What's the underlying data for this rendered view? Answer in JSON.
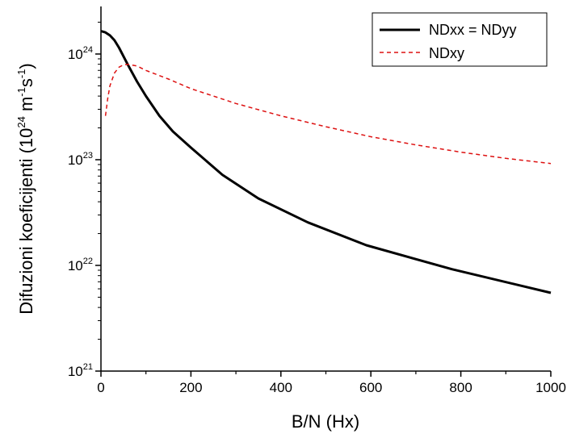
{
  "chart_data": {
    "type": "line",
    "xlabel": "B/N (Hx)",
    "ylabel_main": "Difuzioni koeficijenti (10",
    "ylabel_parts": [
      "24",
      " m",
      "-1",
      "s",
      "-1",
      ")"
    ],
    "x_ticks": [
      0,
      200,
      400,
      600,
      800,
      1000
    ],
    "x_tick_labels": [
      "0",
      "200",
      "400",
      "600",
      "800",
      "1000"
    ],
    "y_ticks": [
      21,
      22,
      23,
      24
    ],
    "y_tick_base": "10",
    "y_tick_exponents": [
      "21",
      "22",
      "23",
      "24"
    ],
    "xlim": [
      0,
      1000
    ],
    "ylim_log10": [
      21,
      24.45
    ],
    "y_scale": "log",
    "grid": false,
    "legend_position": "top-right",
    "series": [
      {
        "name": "NDxx = NDyy",
        "color": "#000000",
        "style": "solid",
        "x": [
          0,
          10,
          20,
          30,
          40,
          60,
          80,
          100,
          130,
          160,
          200,
          270,
          350,
          460,
          590,
          780,
          1000
        ],
        "y": [
          1.65e+24,
          1.6e+24,
          1.5e+24,
          1.35e+24,
          1.15e+24,
          7.9e+23,
          5.5e+23,
          4e+23,
          2.6e+23,
          1.85e+23,
          1.3e+23,
          7.2e+22,
          4.3e+22,
          2.55e+22,
          1.55e+22,
          9.2e+21,
          5.5e+21
        ]
      },
      {
        "name": "NDxy",
        "color": "#dd1111",
        "style": "dashed",
        "x": [
          10,
          15,
          20,
          30,
          40,
          50,
          60,
          80,
          100,
          150,
          200,
          300,
          400,
          500,
          600,
          700,
          800,
          900,
          1000
        ],
        "y": [
          2.6e+23,
          3.8e+23,
          5e+23,
          6.6e+23,
          7.5e+23,
          7.9e+23,
          8e+23,
          7.7e+23,
          7e+23,
          5.8e+23,
          4.7e+23,
          3.4e+23,
          2.6e+23,
          2.05e+23,
          1.65e+23,
          1.38e+23,
          1.18e+23,
          1.03e+23,
          9.2e+22
        ]
      }
    ]
  }
}
